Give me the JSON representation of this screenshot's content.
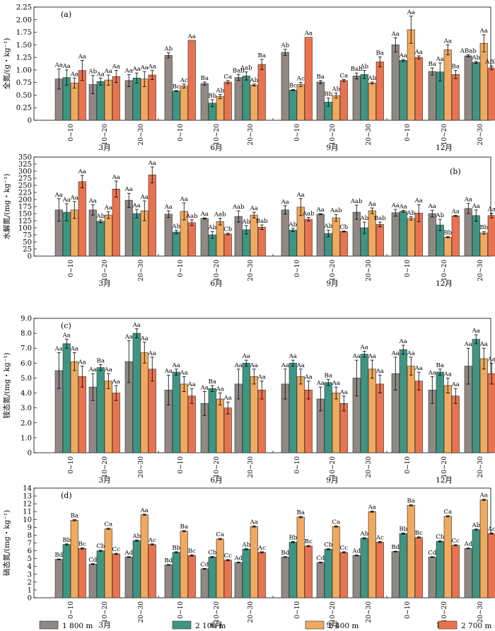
{
  "chart_data": [
    {
      "type": "bar",
      "panel": "(a)",
      "ylabel": "全氮/(g・kg⁻¹)",
      "ylim": [
        0,
        2.25
      ],
      "yticks": [
        "0",
        "0.25",
        "0.50",
        "0.75",
        "1.00",
        "1.25",
        "1.50",
        "1.75",
        "2.00",
        "2.25"
      ],
      "months": [
        "3月",
        "6月",
        "9月",
        "12月"
      ],
      "depths": [
        "0~10",
        "10~20",
        "20~30"
      ],
      "series": [
        {
          "name": "1 800 m",
          "values": [
            0.82,
            0.71,
            0.79,
            1.29,
            0.73,
            0.85,
            1.35,
            0.76,
            0.88,
            1.5,
            0.97,
            1.28
          ],
          "err": [
            0.2,
            0.18,
            0.12,
            0.05,
            0.03,
            0.06,
            0.06,
            0.03,
            0.06,
            0.14,
            0.07,
            0.02
          ],
          "sig": [
            "Aa",
            "Ab",
            "Aa",
            "Ab",
            "Ba",
            "Bab",
            "Ab",
            "Ba",
            "Bab",
            "Aa",
            "Ba",
            "ABab"
          ]
        },
        {
          "name": "2 100 m",
          "values": [
            0.85,
            0.77,
            0.84,
            0.58,
            0.34,
            0.88,
            0.6,
            0.36,
            0.91,
            1.19,
            0.96,
            1.15
          ],
          "err": [
            0.15,
            0.07,
            0.1,
            0.01,
            0.07,
            0.08,
            0.01,
            0.08,
            0.08,
            0.02,
            0.18,
            0.02
          ],
          "sig": [
            "Aa",
            "Aa",
            "Aa",
            "Bc",
            "Bb",
            "Aab",
            "Bc",
            "Bb",
            "Ab",
            "Aa",
            "Aa",
            "Ab"
          ]
        },
        {
          "name": "2 400 m",
          "values": [
            0.74,
            0.8,
            0.82,
            0.68,
            0.47,
            0.7,
            0.71,
            0.49,
            0.74,
            1.8,
            1.4,
            1.53
          ],
          "err": [
            0.1,
            0.1,
            0.15,
            0.04,
            0.04,
            0.02,
            0.04,
            0.05,
            0.02,
            0.27,
            0.1,
            0.17
          ],
          "sig": [
            "Aa",
            "Aa",
            "Aa",
            "Ac",
            "Ab",
            "Ab",
            "Ac",
            "Ab",
            "Ab",
            "Aa",
            "Aa",
            "Aa"
          ]
        },
        {
          "name": "2 700 m",
          "values": [
            0.99,
            0.87,
            0.9,
            1.59,
            0.76,
            1.11,
            1.65,
            0.79,
            1.16,
            1.25,
            0.91,
            1.04
          ],
          "err": [
            0.2,
            0.12,
            0.09,
            0,
            0.03,
            0.1,
            0,
            0.02,
            0.1,
            0.03,
            0.08,
            0.04
          ],
          "sig": [
            "Aa",
            "Aa",
            "Aa",
            "Aa",
            "Ca",
            "Ba",
            "Aa",
            "Ca",
            "Ba",
            "Aa",
            "Ba",
            "ABb"
          ]
        }
      ]
    },
    {
      "type": "bar",
      "panel": "(b)",
      "ylabel": "水解氮/(mg・kg⁻¹)",
      "ylim": [
        0,
        350
      ],
      "yticks": [
        "0",
        "25",
        "50",
        "75",
        "100",
        "125",
        "150",
        "175",
        "200",
        "225",
        "250",
        "275",
        "300",
        "325",
        "350"
      ],
      "months": [
        "3月",
        "6月",
        "9月",
        "12月"
      ],
      "depths": [
        "0~10",
        "10~20",
        "20~30"
      ],
      "series": [
        {
          "name": "1 800 m",
          "values": [
            163,
            163,
            197,
            148,
            133,
            140,
            163,
            148,
            155,
            153,
            150,
            168
          ],
          "err": [
            40,
            18,
            25,
            12,
            2,
            20,
            15,
            2,
            25,
            12,
            12,
            18
          ],
          "sig": [
            "Aa",
            "Aa",
            "Aa",
            "Aa",
            "Aa",
            "Aab",
            "Aa",
            "Aa",
            "Aab",
            "Aa",
            "Aa",
            "Aa"
          ]
        },
        {
          "name": "2 100 m",
          "values": [
            155,
            123,
            150,
            85,
            75,
            93,
            92,
            80,
            100,
            158,
            110,
            143
          ],
          "err": [
            30,
            5,
            15,
            6,
            12,
            15,
            6,
            12,
            20,
            3,
            20,
            20
          ],
          "sig": [
            "Aa",
            "Ab",
            "Aa",
            "Ab",
            "Ab",
            "Ab",
            "Ab",
            "Ab",
            "Ab",
            "Aa",
            "Ab",
            "Aa"
          ]
        },
        {
          "name": "2 400 m",
          "values": [
            163,
            145,
            160,
            158,
            122,
            145,
            173,
            135,
            160,
            133,
            67,
            82
          ],
          "err": [
            30,
            12,
            35,
            30,
            12,
            10,
            30,
            12,
            10,
            6,
            2,
            5
          ],
          "sig": [
            "Aa",
            "Aa",
            "Aa",
            "Aa",
            "Aab",
            "Aa",
            "Aa",
            "Aab",
            "Aa",
            "Ab",
            "Bb",
            "Bb"
          ]
        },
        {
          "name": "2 700 m",
          "values": [
            263,
            237,
            287,
            118,
            78,
            102,
            130,
            87,
            112,
            152,
            142,
            143
          ],
          "err": [
            22,
            28,
            28,
            10,
            3,
            8,
            6,
            2,
            8,
            30,
            2,
            8
          ],
          "sig": [
            "Aa",
            "Aa",
            "Aa",
            "Aab",
            "Cb",
            "Bab",
            "Aab",
            "Cb",
            "Bab",
            "Aa",
            "Aa",
            "Aa"
          ]
        }
      ]
    },
    {
      "type": "bar",
      "panel": "(c)",
      "ylabel": "铵态氮/(mg・kg⁻¹)",
      "ylim": [
        0,
        9.0
      ],
      "yticks": [
        "0",
        "1.0",
        "2.0",
        "3.0",
        "4.0",
        "5.0",
        "6.0",
        "7.0",
        "8.0",
        "9.0"
      ],
      "months": [
        "3月",
        "6月",
        "9月",
        "12月"
      ],
      "depths": [
        "0~10",
        "10~20",
        "20~30"
      ],
      "series": [
        {
          "name": "1 800 m",
          "values": [
            5.5,
            4.4,
            6.1,
            4.2,
            3.3,
            4.6,
            4.6,
            3.6,
            5.0,
            5.3,
            4.2,
            5.8
          ],
          "err": [
            1.2,
            0.9,
            1.4,
            1.0,
            0.8,
            1.0,
            1.0,
            0.8,
            1.2,
            1.1,
            0.9,
            1.2
          ],
          "sig": [
            "Aa",
            "Aa",
            "Aa",
            "Aa",
            "Aa",
            "Aa",
            "Aa",
            "Aa",
            "Aa",
            "Aa",
            "Aa",
            "Aa"
          ]
        },
        {
          "name": "2 100 m",
          "values": [
            7.3,
            5.7,
            8.0,
            5.4,
            4.3,
            6.0,
            6.0,
            4.7,
            6.6,
            6.9,
            5.4,
            7.6
          ],
          "err": [
            0.3,
            0.2,
            0.3,
            0.2,
            0.2,
            0.2,
            0.2,
            0.2,
            0.2,
            0.3,
            0.2,
            0.3
          ],
          "sig": [
            "Aa",
            "Ba",
            "Aa",
            "Aa",
            "Ba",
            "Aa",
            "Aa",
            "Ba",
            "Aa",
            "Aa",
            "Ba",
            "Aa"
          ]
        },
        {
          "name": "2 400 m",
          "values": [
            6.1,
            4.8,
            6.7,
            4.6,
            3.6,
            5.1,
            5.1,
            4.0,
            5.6,
            5.8,
            4.5,
            6.3
          ],
          "err": [
            0.6,
            0.5,
            0.7,
            0.5,
            0.4,
            0.5,
            0.5,
            0.4,
            0.6,
            0.6,
            0.5,
            0.7
          ],
          "sig": [
            "Aa",
            "Aa",
            "Aa",
            "Aa",
            "Aa",
            "Aa",
            "Aa",
            "Aa",
            "Aa",
            "Aa",
            "Aa",
            "Aa"
          ]
        },
        {
          "name": "2 700 m",
          "values": [
            5.1,
            4.0,
            5.6,
            3.8,
            3.0,
            4.2,
            4.2,
            3.3,
            4.6,
            4.8,
            3.8,
            5.3
          ],
          "err": [
            0.7,
            0.5,
            0.8,
            0.5,
            0.4,
            0.6,
            0.6,
            0.5,
            0.6,
            0.6,
            0.5,
            0.7
          ],
          "sig": [
            "Aa",
            "Aa",
            "Aa",
            "Aa",
            "Aa",
            "Aa",
            "Aa",
            "Aa",
            "Aa",
            "Aa",
            "Aa",
            "Aa"
          ]
        }
      ]
    },
    {
      "type": "bar",
      "panel": "(d)",
      "ylabel": "硝态氮/(mg・kg⁻¹)",
      "ylim": [
        0,
        14
      ],
      "yticks": [
        "0",
        "1",
        "2",
        "3",
        "4",
        "5",
        "6",
        "7",
        "8",
        "9",
        "10",
        "11",
        "12",
        "13",
        "14"
      ],
      "months": [
        "3月",
        "6月",
        "9月",
        "12月"
      ],
      "depths": [
        "0~10",
        "10~20",
        "20~30"
      ],
      "series": [
        {
          "name": "1 800 m",
          "values": [
            4.9,
            4.3,
            5.2,
            4.2,
            3.7,
            4.5,
            5.2,
            4.5,
            5.4,
            5.9,
            5.2,
            6.3
          ],
          "err": [
            0.05,
            0.05,
            0.05,
            0.05,
            0.05,
            0.05,
            0.05,
            0.05,
            0.05,
            0.05,
            0.05,
            0.05
          ],
          "sig": [
            "Bd",
            "Cd",
            "Ad",
            "Bd",
            "Cd",
            "Ad",
            "Bd",
            "Cd",
            "Ad",
            "Bd",
            "Cd",
            "Ad"
          ]
        },
        {
          "name": "2 100 m",
          "values": [
            6.8,
            6.0,
            7.3,
            5.8,
            5.2,
            6.2,
            7.1,
            6.2,
            7.6,
            8.2,
            7.2,
            8.7
          ],
          "err": [
            0.08,
            0.08,
            0.08,
            0.08,
            0.08,
            0.08,
            0.08,
            0.08,
            0.08,
            0.08,
            0.08,
            0.08
          ],
          "sig": [
            "Bb",
            "Cb",
            "Ab",
            "Bb",
            "Cb",
            "Ab",
            "Bb",
            "Cb",
            "Ab",
            "Bb",
            "Cb",
            "Ab"
          ]
        },
        {
          "name": "2 400 m",
          "values": [
            9.9,
            8.8,
            10.6,
            8.5,
            7.5,
            9.1,
            10.3,
            9.1,
            11.0,
            11.8,
            10.4,
            12.5
          ],
          "err": [
            0.08,
            0.08,
            0.08,
            0.08,
            0.08,
            0.08,
            0.08,
            0.08,
            0.08,
            0.08,
            0.08,
            0.08
          ],
          "sig": [
            "Ba",
            "Ca",
            "Aa",
            "Ba",
            "Ca",
            "Aa",
            "Ba",
            "Ca",
            "Aa",
            "Ba",
            "Ca",
            "Aa"
          ]
        },
        {
          "name": "2 700 m",
          "values": [
            6.3,
            5.6,
            6.8,
            5.4,
            4.8,
            5.8,
            6.6,
            5.8,
            7.1,
            7.7,
            6.7,
            8.2
          ],
          "err": [
            0.08,
            0.08,
            0.08,
            0.08,
            0.08,
            0.08,
            0.08,
            0.08,
            0.08,
            0.08,
            0.08,
            0.08
          ],
          "sig": [
            "Bc",
            "Cc",
            "Ac",
            "Bc",
            "Cc",
            "Ac",
            "Bc",
            "Cc",
            "Ac",
            "Bc",
            "Cc",
            "Ac"
          ]
        }
      ]
    }
  ],
  "legend": {
    "items": [
      {
        "label": "1 800 m",
        "color": "#8f8884"
      },
      {
        "label": "2 100 m",
        "color": "#3e9682"
      },
      {
        "label": "2 400 m",
        "color": "#f0a95e"
      },
      {
        "label": "2 700 m",
        "color": "#e9734f"
      }
    ]
  },
  "colors": [
    "#8f8884",
    "#3e9682",
    "#f0a95e",
    "#e9734f"
  ]
}
